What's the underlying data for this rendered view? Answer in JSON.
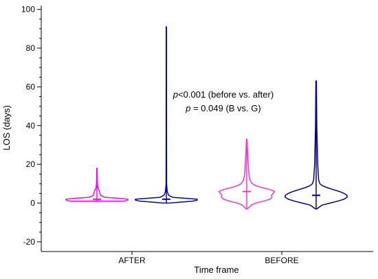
{
  "chart_data": {
    "type": "violin",
    "title": "",
    "xlabel": "Time frame",
    "ylabel": "LOS (days)",
    "ylim": [
      -25,
      102
    ],
    "yticks": [
      -20,
      0,
      20,
      40,
      60,
      80,
      100
    ],
    "categories": [
      "AFTER",
      "BEFORE"
    ],
    "grid": false,
    "annotation": {
      "line1_italic": "p",
      "line1_rest": "<0.001 (before vs. after)",
      "line2_italic": "p",
      "line2_rest": " = 0.049 (B vs. G)"
    },
    "series": [
      {
        "category": "AFTER",
        "group": "G",
        "color": "#ff00ff",
        "min": 1,
        "max": 18,
        "mode": 2,
        "profile": [
          [
            1,
            0.85
          ],
          [
            1.5,
            1.0
          ],
          [
            2,
            1.0
          ],
          [
            2.5,
            0.7
          ],
          [
            3,
            0.25
          ],
          [
            4,
            0.12
          ],
          [
            5,
            0.1
          ],
          [
            6,
            0.08
          ],
          [
            7,
            0.06
          ],
          [
            8,
            0.03
          ],
          [
            10,
            0.015
          ],
          [
            14,
            0.01
          ],
          [
            18,
            0.005
          ]
        ]
      },
      {
        "category": "AFTER",
        "group": "B",
        "color": "#0000cc",
        "min": 0,
        "max": 91,
        "mode": 2,
        "profile": [
          [
            0,
            0.1
          ],
          [
            0.5,
            0.45
          ],
          [
            1,
            0.85
          ],
          [
            1.5,
            1.0
          ],
          [
            2,
            1.0
          ],
          [
            2.5,
            0.6
          ],
          [
            3,
            0.2
          ],
          [
            4,
            0.08
          ],
          [
            5,
            0.05
          ],
          [
            6,
            0.03
          ],
          [
            10,
            0.01
          ],
          [
            30,
            0.006
          ],
          [
            91,
            0.005
          ]
        ]
      },
      {
        "category": "BEFORE",
        "group": "G",
        "color": "#ff33cc",
        "min": -3,
        "max": 33,
        "mode": 6,
        "profile": [
          [
            -3,
            0.02
          ],
          [
            -1,
            0.15
          ],
          [
            0,
            0.3
          ],
          [
            1,
            0.55
          ],
          [
            2,
            0.75
          ],
          [
            3,
            0.82
          ],
          [
            4,
            0.8
          ],
          [
            6,
            0.9
          ],
          [
            7,
            0.75
          ],
          [
            8,
            0.5
          ],
          [
            9,
            0.3
          ],
          [
            10,
            0.18
          ],
          [
            12,
            0.1
          ],
          [
            15,
            0.07
          ],
          [
            20,
            0.05
          ],
          [
            25,
            0.03
          ],
          [
            33,
            0.01
          ]
        ]
      },
      {
        "category": "BEFORE",
        "group": "B",
        "color": "#00008b",
        "min": -3,
        "max": 63,
        "mode": 4,
        "profile": [
          [
            -3,
            0.02
          ],
          [
            -1,
            0.2
          ],
          [
            0,
            0.45
          ],
          [
            1,
            0.7
          ],
          [
            2,
            0.9
          ],
          [
            3,
            1.0
          ],
          [
            4,
            1.0
          ],
          [
            5,
            0.9
          ],
          [
            6,
            0.75
          ],
          [
            7,
            0.55
          ],
          [
            8,
            0.35
          ],
          [
            9,
            0.2
          ],
          [
            10,
            0.12
          ],
          [
            12,
            0.08
          ],
          [
            20,
            0.05
          ],
          [
            40,
            0.02
          ],
          [
            63,
            0.01
          ]
        ]
      }
    ]
  }
}
